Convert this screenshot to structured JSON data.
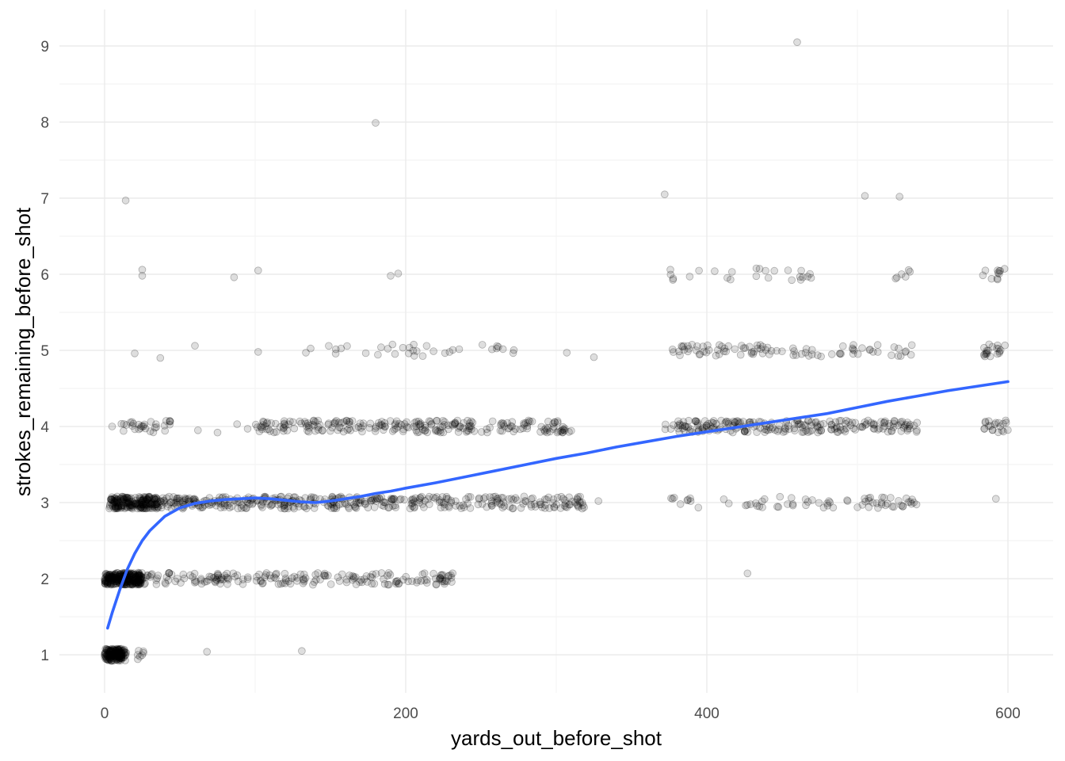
{
  "chart_data": {
    "type": "scatter",
    "title": "",
    "xlabel": "yards_out_before_shot",
    "ylabel": "strokes_remaining_before_shot",
    "xlim": [
      -30,
      630
    ],
    "ylim": [
      0.5,
      9.4
    ],
    "x_ticks": [
      0,
      200,
      400,
      600
    ],
    "x_tick_labels": [
      "0",
      "200",
      "400",
      "600"
    ],
    "y_ticks": [
      1,
      2,
      3,
      4,
      5,
      6,
      7,
      8,
      9
    ],
    "y_tick_labels": [
      "1",
      "2",
      "3",
      "4",
      "5",
      "6",
      "7",
      "8",
      "9"
    ],
    "grid": true,
    "legend": "none",
    "point_color": "#000000",
    "point_alpha": 0.15,
    "smooth_color": "#3366ff",
    "clusters": [
      {
        "y": 1,
        "x_min": 0,
        "x_max": 14,
        "count": 160
      },
      {
        "y": 1,
        "x_min": 14,
        "x_max": 26,
        "count": 8
      },
      {
        "y": 2,
        "x_min": 0,
        "x_max": 25,
        "count": 260
      },
      {
        "y": 2,
        "x_min": 25,
        "x_max": 110,
        "count": 80
      },
      {
        "y": 2,
        "x_min": 110,
        "x_max": 235,
        "count": 110
      },
      {
        "y": 3,
        "x_min": 3,
        "x_max": 35,
        "count": 200
      },
      {
        "y": 3,
        "x_min": 35,
        "x_max": 195,
        "count": 260
      },
      {
        "y": 3,
        "x_min": 195,
        "x_max": 320,
        "count": 140
      },
      {
        "y": 3,
        "x_min": 372,
        "x_max": 540,
        "count": 70
      },
      {
        "y": 4,
        "x_min": 10,
        "x_max": 45,
        "count": 30
      },
      {
        "y": 4,
        "x_min": 100,
        "x_max": 310,
        "count": 240
      },
      {
        "y": 4,
        "x_min": 372,
        "x_max": 540,
        "count": 220
      },
      {
        "y": 4,
        "x_min": 583,
        "x_max": 600,
        "count": 20
      },
      {
        "y": 5,
        "x_min": 130,
        "x_max": 275,
        "count": 35
      },
      {
        "y": 5,
        "x_min": 375,
        "x_max": 540,
        "count": 90
      },
      {
        "y": 5,
        "x_min": 583,
        "x_max": 600,
        "count": 20
      },
      {
        "y": 6,
        "x_min": 375,
        "x_max": 470,
        "count": 25
      },
      {
        "y": 6,
        "x_min": 525,
        "x_max": 535,
        "count": 6
      },
      {
        "y": 6,
        "x_min": 583,
        "x_max": 600,
        "count": 10
      }
    ],
    "points": [
      [
        0,
        1
      ],
      [
        1,
        1.02
      ],
      [
        2,
        0.98
      ],
      [
        3,
        1.01
      ],
      [
        5,
        1
      ],
      [
        8,
        1.03
      ],
      [
        68,
        1.04
      ],
      [
        131,
        1.05
      ],
      [
        13,
        2
      ],
      [
        22,
        2.05
      ],
      [
        427,
        2.07
      ],
      [
        16,
        3
      ],
      [
        328,
        3.02
      ],
      [
        530,
        2.95
      ],
      [
        592,
        3.05
      ],
      [
        5,
        4
      ],
      [
        62,
        3.95
      ],
      [
        75,
        3.92
      ],
      [
        88,
        4.03
      ],
      [
        95,
        3.97
      ],
      [
        20,
        4.96
      ],
      [
        37,
        4.9
      ],
      [
        60,
        5.06
      ],
      [
        102,
        4.98
      ],
      [
        307,
        4.97
      ],
      [
        325,
        4.91
      ],
      [
        25,
        6.06
      ],
      [
        25,
        5.98
      ],
      [
        86,
        5.96
      ],
      [
        102,
        6.05
      ],
      [
        190,
        5.98
      ],
      [
        195,
        6.01
      ],
      [
        585,
        6.05
      ],
      [
        14,
        6.97
      ],
      [
        372,
        7.05
      ],
      [
        505,
        7.03
      ],
      [
        528,
        7.02
      ],
      [
        180,
        7.99
      ],
      [
        460,
        9.05
      ]
    ],
    "smooth_curve": {
      "x": [
        2,
        5,
        10,
        15,
        20,
        25,
        30,
        40,
        50,
        60,
        70,
        80,
        90,
        100,
        110,
        120,
        130,
        140,
        150,
        160,
        170,
        180,
        190,
        200,
        220,
        240,
        260,
        280,
        300,
        320,
        340,
        360,
        380,
        400,
        420,
        440,
        460,
        480,
        500,
        520,
        540,
        560,
        580,
        600
      ],
      "y": [
        1.35,
        1.55,
        1.85,
        2.12,
        2.33,
        2.5,
        2.63,
        2.82,
        2.93,
        2.99,
        3.02,
        3.04,
        3.05,
        3.06,
        3.05,
        3.03,
        3.01,
        3.0,
        3.02,
        3.05,
        3.08,
        3.12,
        3.15,
        3.19,
        3.26,
        3.34,
        3.42,
        3.5,
        3.58,
        3.65,
        3.73,
        3.8,
        3.87,
        3.93,
        3.99,
        4.05,
        4.11,
        4.17,
        4.25,
        4.33,
        4.4,
        4.47,
        4.53,
        4.59
      ]
    }
  }
}
